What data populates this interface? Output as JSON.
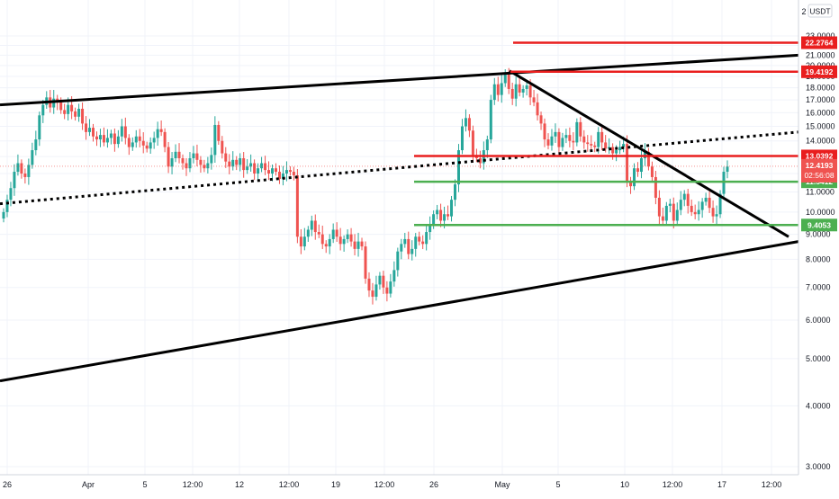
{
  "chart_data": {
    "type": "candlestick",
    "currency_label": "USDT",
    "top_label": "2",
    "y_axis": {
      "scale": "log",
      "ticks": [
        "23.0000",
        "22.0000",
        "21.0000",
        "20.0000",
        "19.0000",
        "18.0000",
        "17.0000",
        "16.0000",
        "15.0000",
        "14.0000",
        "13.0000",
        "12.0000",
        "11.0000",
        "10.0000",
        "9.0000",
        "8.0000",
        "7.0000",
        "6.0000",
        "5.0000",
        "4.0000",
        "3.0000"
      ],
      "range": [
        2.7,
        24.5
      ]
    },
    "x_axis": {
      "ticks": [
        "26",
        "Apr",
        "5",
        "12:00",
        "12",
        "12:00",
        "19",
        "12:00",
        "26",
        "May",
        "5",
        "10",
        "12:00",
        "17",
        "12:00"
      ]
    },
    "current_price": {
      "value": 12.4193,
      "label": "12.4193",
      "countdown": "02:56:08",
      "color": "#ef5350"
    },
    "horizontal_levels": [
      {
        "name": "resistance-top",
        "value": 22.2764,
        "label": "22.2764",
        "color": "#e91e1e"
      },
      {
        "name": "resistance-high",
        "value": 19.4192,
        "label": "19.4192",
        "color": "#e91e1e"
      },
      {
        "name": "resistance-mid",
        "value": 13.0392,
        "label": "13.0392",
        "color": "#e91e1e"
      },
      {
        "name": "support-mid",
        "value": 11.5412,
        "label": "11.5412",
        "color": "#4caf50"
      },
      {
        "name": "support-low",
        "value": 9.4053,
        "label": "9.4053",
        "color": "#4caf50"
      }
    ],
    "trendlines": [
      {
        "name": "channel-upper",
        "style": "solid",
        "color": "#000000"
      },
      {
        "name": "channel-lower",
        "style": "solid",
        "color": "#000000"
      },
      {
        "name": "channel-midline",
        "style": "dotted",
        "color": "#000000"
      },
      {
        "name": "descending-trendline",
        "style": "solid",
        "color": "#000000"
      }
    ],
    "candle_colors": {
      "up": "#26a69a",
      "down": "#ef5350"
    },
    "candles_close": [
      10.0,
      10.6,
      11.2,
      12.1,
      12.6,
      12.0,
      11.8,
      12.5,
      13.4,
      14.1,
      15.8,
      16.6,
      17.2,
      16.4,
      17.1,
      16.8,
      16.2,
      15.9,
      16.6,
      16.1,
      15.7,
      16.3,
      15.2,
      14.6,
      14.9,
      14.3,
      14.1,
      14.4,
      13.9,
      14.2,
      14.5,
      13.8,
      14.3,
      15.0,
      14.2,
      13.6,
      13.9,
      14.3,
      14.0,
      13.7,
      13.5,
      13.9,
      14.2,
      14.8,
      14.6,
      13.6,
      12.4,
      12.9,
      13.3,
      12.9,
      12.6,
      12.3,
      12.9,
      13.2,
      12.8,
      12.5,
      12.3,
      12.6,
      13.1,
      15.1,
      14.0,
      13.2,
      12.7,
      12.4,
      12.8,
      12.5,
      12.9,
      12.2,
      12.4,
      12.6,
      12.0,
      12.3,
      12.6,
      12.2,
      12.0,
      12.3,
      12.1,
      11.7,
      12.0,
      12.2,
      12.1,
      11.9,
      8.9,
      8.5,
      8.9,
      9.2,
      9.6,
      9.1,
      9.0,
      8.6,
      8.5,
      8.8,
      9.2,
      8.9,
      8.6,
      8.8,
      9.0,
      8.7,
      8.4,
      8.7,
      8.5,
      7.3,
      6.9,
      6.7,
      7.1,
      7.4,
      7.0,
      6.8,
      7.2,
      7.6,
      8.3,
      8.6,
      8.8,
      8.2,
      8.4,
      8.9,
      8.7,
      8.6,
      9.1,
      9.4,
      9.9,
      10.1,
      9.6,
      9.9,
      9.8,
      10.6,
      11.4,
      13.4,
      15.0,
      15.6,
      14.7,
      13.1,
      12.9,
      12.6,
      13.4,
      14.1,
      17.0,
      18.3,
      17.4,
      18.4,
      19.3,
      17.9,
      17.1,
      18.3,
      17.6,
      17.9,
      18.2,
      17.2,
      16.8,
      15.8,
      15.2,
      14.1,
      13.7,
      14.3,
      14.6,
      13.6,
      14.2,
      14.4,
      14.0,
      13.9,
      15.3,
      14.3,
      13.9,
      13.8,
      13.7,
      13.6,
      14.6,
      13.9,
      13.5,
      13.6,
      13.2,
      13.4,
      13.6,
      13.8,
      11.6,
      11.3,
      12.3,
      12.1,
      12.9,
      13.3,
      12.4,
      11.8,
      10.7,
      9.8,
      9.6,
      10.3,
      10.4,
      9.6,
      10.1,
      10.6,
      10.9,
      10.3,
      10.0,
      9.9,
      10.1,
      10.5,
      10.7,
      10.2,
      9.8,
      9.9,
      10.9,
      12.1,
      12.4
    ]
  }
}
